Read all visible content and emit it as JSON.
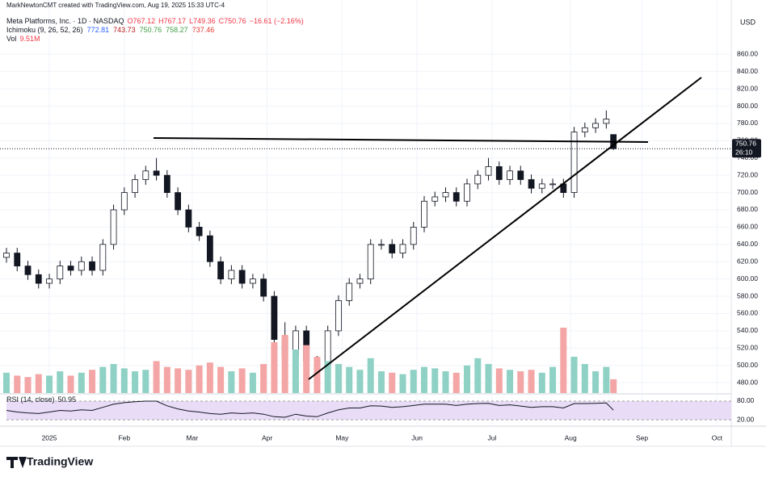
{
  "header": {
    "credit": "MarkNewtonCMT created with TradingView.com, Aug 19, 2025 15:33 UTC-4",
    "symbol": "Meta Platforms, Inc. · 1D · NASDAQ",
    "ohlc": [
      "O767.12",
      "H767.17",
      "L749.36",
      "C750.76"
    ],
    "change": "−16.61 (−2.16%)",
    "ichimoku": "Ichimoku (9, 26, 52, 26)",
    "ichimoku_values": [
      {
        "text": "772.81",
        "color": "#2962ff"
      },
      {
        "text": "743.73",
        "color": "#b71c1c"
      },
      {
        "text": "750.76",
        "color": "#43a047"
      },
      {
        "text": "758.27",
        "color": "#43a047"
      },
      {
        "text": "737.46",
        "color": "#e53935"
      }
    ],
    "vol": "Vol",
    "vol_value": "9.51M",
    "currency": "USD",
    "last_price": "750.76",
    "countdown": "26:10",
    "logo": "TradingView"
  },
  "chart_data": [
    {
      "type": "candlestick",
      "name": "price",
      "x": [
        -12,
        -9,
        -6,
        -3,
        0,
        3,
        6,
        9,
        12,
        15,
        18,
        21,
        24,
        27,
        30,
        33,
        36,
        39,
        42,
        45,
        48,
        51,
        54,
        57,
        60,
        63,
        66,
        69,
        72,
        75,
        78,
        81,
        84,
        87,
        90,
        93,
        96,
        99,
        102,
        105,
        108,
        111,
        114,
        117,
        120,
        123,
        126,
        129,
        132,
        135,
        138,
        141,
        144,
        147,
        150,
        153,
        156,
        158
      ],
      "open": [
        625,
        630,
        615,
        605,
        595,
        600,
        615,
        610,
        620,
        610,
        640,
        680,
        700,
        715,
        725,
        720,
        700,
        680,
        660,
        650,
        620,
        600,
        610,
        595,
        600,
        580,
        530,
        510,
        540,
        505,
        500,
        540,
        575,
        595,
        600,
        640,
        640,
        630,
        640,
        660,
        690,
        695,
        700,
        690,
        710,
        720,
        730,
        715,
        725,
        715,
        705,
        710,
        710,
        700,
        770,
        775,
        780,
        767.12
      ],
      "high": [
        636,
        636,
        621,
        611,
        606,
        621,
        621,
        626,
        626,
        646,
        686,
        706,
        721,
        731,
        740,
        726,
        706,
        686,
        666,
        656,
        626,
        616,
        616,
        606,
        606,
        586,
        550,
        546,
        546,
        511,
        546,
        581,
        601,
        606,
        646,
        646,
        646,
        646,
        666,
        696,
        701,
        706,
        706,
        716,
        726,
        740,
        736,
        731,
        731,
        721,
        716,
        716,
        716,
        776,
        781,
        786,
        795,
        767.17
      ],
      "low": [
        619,
        609,
        599,
        589,
        589,
        594,
        604,
        604,
        604,
        604,
        634,
        674,
        694,
        709,
        714,
        694,
        674,
        654,
        644,
        614,
        594,
        594,
        589,
        589,
        574,
        524,
        480,
        504,
        499,
        481,
        494,
        534,
        569,
        589,
        594,
        634,
        624,
        624,
        634,
        654,
        684,
        689,
        684,
        684,
        704,
        714,
        709,
        709,
        709,
        699,
        699,
        704,
        694,
        694,
        764,
        769,
        774,
        749.36
      ],
      "close": [
        630,
        615,
        605,
        595,
        600,
        615,
        610,
        620,
        610,
        640,
        680,
        700,
        715,
        725,
        720,
        700,
        680,
        660,
        650,
        620,
        600,
        610,
        595,
        600,
        580,
        530,
        510,
        540,
        505,
        500,
        540,
        575,
        595,
        600,
        640,
        640,
        630,
        640,
        660,
        690,
        695,
        700,
        690,
        710,
        720,
        730,
        715,
        725,
        715,
        705,
        710,
        710,
        700,
        770,
        775,
        780,
        785,
        750.76
      ],
      "up_color": "#ffffff",
      "down_color": "#131722",
      "xlim": [
        -12,
        191
      ],
      "xticks": [
        {
          "value": 0,
          "label": "2025"
        },
        {
          "value": 21,
          "label": "Feb"
        },
        {
          "value": 40,
          "label": "Mar"
        },
        {
          "value": 61,
          "label": "Apr"
        },
        {
          "value": 82,
          "label": "May"
        },
        {
          "value": 103,
          "label": "Jun"
        },
        {
          "value": 124,
          "label": "Jul"
        },
        {
          "value": 146,
          "label": "Aug"
        },
        {
          "value": 166,
          "label": "Sep"
        },
        {
          "value": 187,
          "label": "Oct"
        }
      ],
      "ylim": [
        468,
        906
      ],
      "yticks": [
        {
          "value": 480,
          "label": "480.00"
        },
        {
          "value": 500,
          "label": "500.00"
        },
        {
          "value": 520,
          "label": "520.00"
        },
        {
          "value": 540,
          "label": "540.00"
        },
        {
          "value": 560,
          "label": "560.00"
        },
        {
          "value": 580,
          "label": "580.00"
        },
        {
          "value": 600,
          "label": "600.00"
        },
        {
          "value": 620,
          "label": "620.00"
        },
        {
          "value": 640,
          "label": "640.00"
        },
        {
          "value": 660,
          "label": "660.00"
        },
        {
          "value": 680,
          "label": "680.00"
        },
        {
          "value": 700,
          "label": "700.00"
        },
        {
          "value": 720,
          "label": "720.00"
        },
        {
          "value": 740,
          "label": "740.00"
        },
        {
          "value": 760,
          "label": "760.00"
        },
        {
          "value": 780,
          "label": "780.00"
        },
        {
          "value": 800,
          "label": "800.00"
        },
        {
          "value": 820,
          "label": "820.00"
        },
        {
          "value": 840,
          "label": "840.00"
        },
        {
          "value": 860,
          "label": "860.00"
        }
      ]
    },
    {
      "type": "volume",
      "name": "Vol",
      "up_color": "#8fd1c4",
      "down_color": "#f4a5a5",
      "values": [
        14,
        12,
        11,
        13,
        12,
        15,
        12,
        14,
        16,
        18,
        20,
        17,
        15,
        16,
        22,
        18,
        17,
        16,
        19,
        21,
        18,
        15,
        17,
        14,
        20,
        35,
        40,
        30,
        33,
        25,
        22,
        20,
        18,
        16,
        24,
        15,
        14,
        13,
        16,
        18,
        17,
        15,
        14,
        19,
        24,
        20,
        17,
        16,
        15,
        16,
        14,
        18,
        45,
        25,
        20,
        15,
        18,
        9.51
      ]
    },
    {
      "type": "line",
      "name": "RSI (14, close)",
      "label": "RSI (14, close)",
      "value_label": "50.95",
      "color": "#131722",
      "band_color": "#e9dcf7",
      "values": [
        50,
        45,
        42,
        40,
        45,
        50,
        48,
        52,
        50,
        60,
        70,
        75,
        78,
        80,
        80,
        65,
        55,
        48,
        45,
        40,
        38,
        42,
        40,
        42,
        38,
        30,
        28,
        38,
        32,
        30,
        42,
        52,
        58,
        58,
        65,
        64,
        60,
        62,
        66,
        70,
        70,
        70,
        66,
        70,
        72,
        73,
        66,
        68,
        64,
        60,
        62,
        62,
        58,
        72,
        72,
        73,
        74,
        50.95
      ],
      "ylim": [
        10,
        98
      ],
      "yticks": [
        {
          "value": 20,
          "label": "20.00"
        },
        {
          "value": 80,
          "label": "80.00"
        }
      ]
    }
  ]
}
